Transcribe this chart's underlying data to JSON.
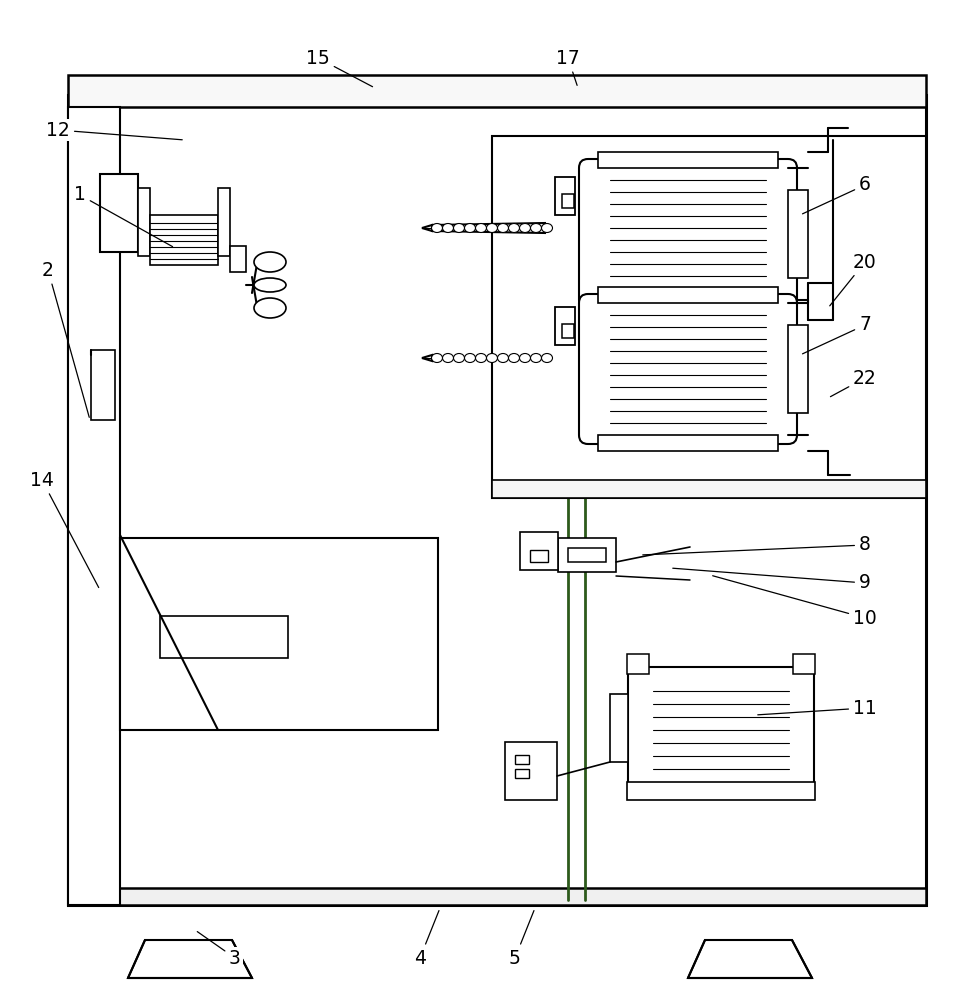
{
  "bg_color": "#ffffff",
  "line_color": "#000000",
  "line_width": 1.5,
  "thin_line": 0.8,
  "fig_width": 9.57,
  "fig_height": 10.0,
  "annotations": [
    [
      "1",
      175,
      248,
      80,
      195
    ],
    [
      "2",
      90,
      420,
      48,
      270
    ],
    [
      "3",
      195,
      930,
      235,
      958
    ],
    [
      "4",
      440,
      908,
      420,
      958
    ],
    [
      "5",
      535,
      908,
      515,
      958
    ],
    [
      "6",
      800,
      215,
      865,
      185
    ],
    [
      "7",
      800,
      355,
      865,
      325
    ],
    [
      "8",
      640,
      555,
      865,
      545
    ],
    [
      "9",
      670,
      568,
      865,
      583
    ],
    [
      "10",
      710,
      575,
      865,
      618
    ],
    [
      "11",
      755,
      715,
      865,
      708
    ],
    [
      "12",
      185,
      140,
      58,
      130
    ],
    [
      "14",
      100,
      590,
      42,
      480
    ],
    [
      "15",
      375,
      88,
      318,
      58
    ],
    [
      "17",
      578,
      88,
      568,
      58
    ],
    [
      "20",
      828,
      308,
      865,
      262
    ],
    [
      "22",
      828,
      398,
      865,
      378
    ]
  ]
}
